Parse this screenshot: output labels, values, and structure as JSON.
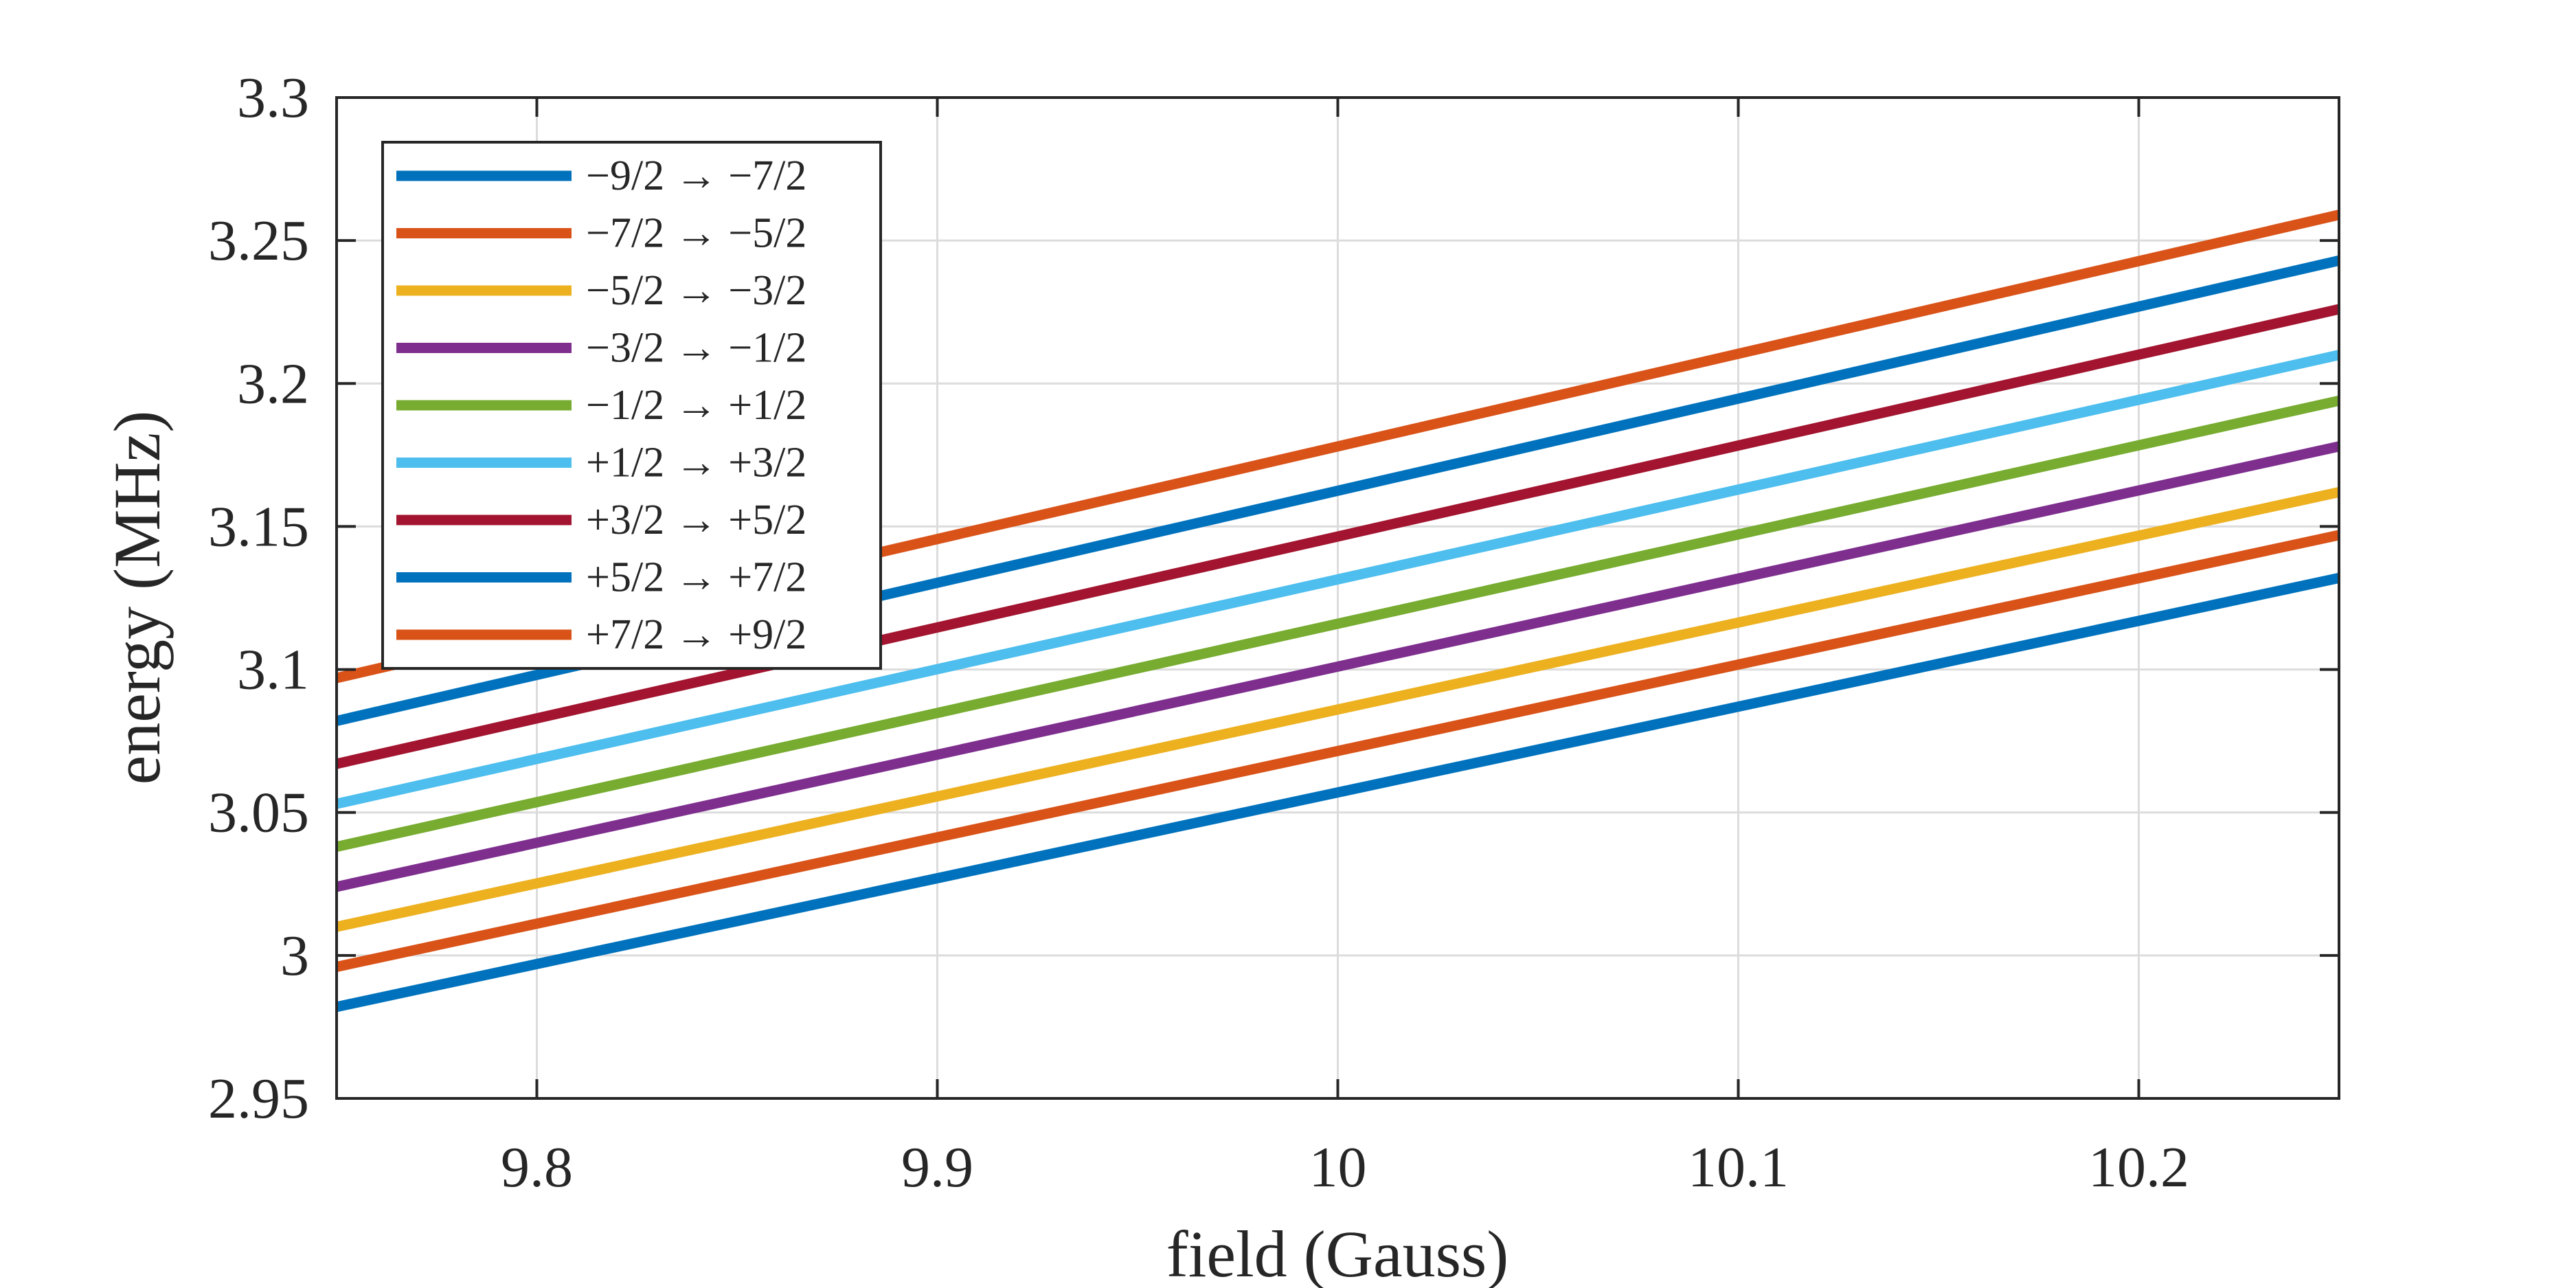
{
  "chart_data": {
    "type": "line",
    "xlabel": "field (Gauss)",
    "ylabel": "energy (MHz)",
    "xlim": [
      9.75,
      10.25
    ],
    "ylim": [
      2.95,
      3.3
    ],
    "xticks": [
      9.8,
      9.9,
      10,
      10.1,
      10.2
    ],
    "xtick_labels": [
      "9.8",
      "9.9",
      "10",
      "10.1",
      "10.2"
    ],
    "yticks": [
      2.95,
      3,
      3.05,
      3.1,
      3.15,
      3.2,
      3.25,
      3.3
    ],
    "ytick_labels": [
      "2.95",
      "3",
      "3.05",
      "3.1",
      "3.15",
      "3.2",
      "3.25",
      "3.3"
    ],
    "grid": true,
    "legend_position": "top-left",
    "series": [
      {
        "name": "−9/2 → −7/2",
        "color": "#0072BD",
        "x": [
          9.75,
          10.25
        ],
        "y": [
          2.982,
          3.132
        ]
      },
      {
        "name": "−7/2 → −5/2",
        "color": "#D95319",
        "x": [
          9.75,
          10.25
        ],
        "y": [
          2.996,
          3.147
        ]
      },
      {
        "name": "−5/2 → −3/2",
        "color": "#EDB120",
        "x": [
          9.75,
          10.25
        ],
        "y": [
          3.01,
          3.162
        ]
      },
      {
        "name": "−3/2 → −1/2",
        "color": "#7E2F8E",
        "x": [
          9.75,
          10.25
        ],
        "y": [
          3.024,
          3.178
        ]
      },
      {
        "name": "−1/2 → +1/2",
        "color": "#77AC30",
        "x": [
          9.75,
          10.25
        ],
        "y": [
          3.038,
          3.194
        ]
      },
      {
        "name": "+1/2 → +3/2",
        "color": "#4DBEEE",
        "x": [
          9.75,
          10.25
        ],
        "y": [
          3.053,
          3.21
        ]
      },
      {
        "name": "+3/2 → +5/2",
        "color": "#A2142F",
        "x": [
          9.75,
          10.25
        ],
        "y": [
          3.067,
          3.226
        ]
      },
      {
        "name": "+5/2 → +7/2",
        "color": "#0072BD",
        "x": [
          9.75,
          10.25
        ],
        "y": [
          3.082,
          3.243
        ]
      },
      {
        "name": "+7/2 → +9/2",
        "color": "#D95319",
        "x": [
          9.75,
          10.25
        ],
        "y": [
          3.097,
          3.259
        ]
      }
    ]
  }
}
